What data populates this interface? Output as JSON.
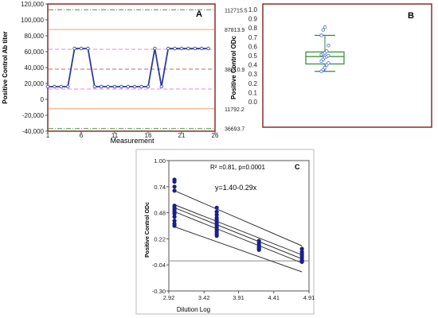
{
  "chart_data": [
    {
      "panel": "A",
      "type": "line",
      "xlabel": "Measurement",
      "ylabel": "Positive Control Ab titer",
      "xticks": [
        1,
        6,
        11,
        16,
        21,
        26
      ],
      "yticks": [
        "120,000",
        "100,000",
        "80,000",
        "60,000",
        "40,000",
        "20,000",
        "0",
        "-20,000",
        "-40,000"
      ],
      "xlim": [
        1,
        26
      ],
      "ylim": [
        -40000,
        120000
      ],
      "x": [
        1,
        2,
        3,
        4,
        5,
        6,
        7,
        8,
        9,
        10,
        11,
        12,
        13,
        14,
        15,
        16,
        17,
        18,
        19,
        20,
        21,
        22,
        23,
        24,
        25
      ],
      "values": [
        16000,
        16000,
        16000,
        16000,
        64000,
        64000,
        64000,
        16000,
        16000,
        16000,
        16000,
        16000,
        16000,
        16000,
        16000,
        16000,
        64000,
        16000,
        64000,
        64000,
        64000,
        64000,
        64000,
        64000,
        64000
      ],
      "reference_lines": [
        {
          "label": "112715.5",
          "value": 112715.5,
          "color": "#3a9b3a",
          "style": "dashdot"
        },
        {
          "label": "87813.9",
          "value": 87813.9,
          "color": "#f2a070",
          "style": "solid"
        },
        {
          "label": "",
          "value": 63000,
          "color": "#e28be0",
          "style": "dashed"
        },
        {
          "label": "38010.9",
          "value": 38010.9,
          "color": "#b07060",
          "style": "dashed"
        },
        {
          "label": "",
          "value": 13000,
          "color": "#e28be0",
          "style": "dashed"
        },
        {
          "label": "11792.2",
          "value": -11792.2,
          "color": "#f2a070",
          "style": "solid"
        },
        {
          "label": "36693.7",
          "value": -36693.7,
          "color": "#3a9b3a",
          "style": "dashdot"
        }
      ],
      "colors": {
        "line": "#2b3b9b",
        "marker_fill": "#ffffff",
        "frame": "#8b2b2b"
      }
    },
    {
      "panel": "B",
      "type": "box",
      "ylabel": "Positive Control ODc",
      "yticks": [
        "0.0",
        "0.1",
        "0.2",
        "0.3",
        "0.4",
        "0.5",
        "0.6",
        "0.7",
        "0.8",
        "0.9",
        "1.0"
      ],
      "ylim": [
        0,
        1.0
      ],
      "box": {
        "whisker_low": 0.33,
        "q1": 0.41,
        "median": 0.49,
        "q3": 0.54,
        "whisker_high": 0.72
      },
      "points": [
        0.33,
        0.35,
        0.37,
        0.4,
        0.42,
        0.44,
        0.46,
        0.48,
        0.49,
        0.5,
        0.51,
        0.52,
        0.53,
        0.55,
        0.61,
        0.72,
        0.78,
        0.81
      ],
      "colors": {
        "box": "#2e8b2e",
        "points": "#4a6fd8",
        "frame": "#8b2b2b"
      }
    },
    {
      "panel": "C",
      "type": "scatter",
      "xlabel": "Dilution Log",
      "ylabel": "Positive Control ODc",
      "annotation_stats": "R² =0.81, p=0.0001",
      "annotation_equation": "y=1.40-0.29x",
      "xticks": [
        "2.92",
        "3.42",
        "3.91",
        "4.41",
        "4.91"
      ],
      "yticks": [
        "1.00",
        "0.74",
        "0.48",
        "0.22",
        "-0.04",
        "-0.30"
      ],
      "xlim": [
        2.92,
        4.91
      ],
      "ylim": [
        -0.3,
        1.0
      ],
      "hline": 0.0,
      "points": [
        {
          "x": 3.0,
          "y": 0.81
        },
        {
          "x": 3.0,
          "y": 0.79
        },
        {
          "x": 3.0,
          "y": 0.74
        },
        {
          "x": 3.0,
          "y": 0.7
        },
        {
          "x": 3.0,
          "y": 0.55
        },
        {
          "x": 3.0,
          "y": 0.53
        },
        {
          "x": 3.0,
          "y": 0.51
        },
        {
          "x": 3.0,
          "y": 0.49
        },
        {
          "x": 3.0,
          "y": 0.47
        },
        {
          "x": 3.0,
          "y": 0.44
        },
        {
          "x": 3.0,
          "y": 0.4
        },
        {
          "x": 3.0,
          "y": 0.37
        },
        {
          "x": 3.0,
          "y": 0.35
        },
        {
          "x": 3.6,
          "y": 0.53
        },
        {
          "x": 3.6,
          "y": 0.49
        },
        {
          "x": 3.6,
          "y": 0.46
        },
        {
          "x": 3.6,
          "y": 0.43
        },
        {
          "x": 3.6,
          "y": 0.41
        },
        {
          "x": 3.6,
          "y": 0.39
        },
        {
          "x": 3.6,
          "y": 0.37
        },
        {
          "x": 3.6,
          "y": 0.35
        },
        {
          "x": 3.6,
          "y": 0.33
        },
        {
          "x": 3.6,
          "y": 0.31
        },
        {
          "x": 3.6,
          "y": 0.29
        },
        {
          "x": 3.6,
          "y": 0.27
        },
        {
          "x": 3.6,
          "y": 0.25
        },
        {
          "x": 4.2,
          "y": 0.2
        },
        {
          "x": 4.2,
          "y": 0.18
        },
        {
          "x": 4.2,
          "y": 0.16
        },
        {
          "x": 4.2,
          "y": 0.14
        },
        {
          "x": 4.2,
          "y": 0.13
        },
        {
          "x": 4.2,
          "y": 0.12
        },
        {
          "x": 4.2,
          "y": 0.11
        },
        {
          "x": 4.81,
          "y": 0.12
        },
        {
          "x": 4.81,
          "y": 0.09
        },
        {
          "x": 4.81,
          "y": 0.07
        },
        {
          "x": 4.81,
          "y": 0.05
        },
        {
          "x": 4.81,
          "y": 0.03
        },
        {
          "x": 4.81,
          "y": 0.01
        },
        {
          "x": 4.81,
          "y": -0.01
        },
        {
          "x": 4.81,
          "y": 0.0
        }
      ],
      "fit_lines": [
        {
          "x": [
            3.0,
            4.81
          ],
          "y": [
            0.7,
            0.15
          ]
        },
        {
          "x": [
            3.0,
            4.81
          ],
          "y": [
            0.56,
            0.06
          ]
        },
        {
          "x": [
            3.0,
            4.81
          ],
          "y": [
            0.53,
            0.02
          ]
        },
        {
          "x": [
            3.0,
            4.81
          ],
          "y": [
            0.49,
            -0.02
          ]
        },
        {
          "x": [
            3.0,
            4.81
          ],
          "y": [
            0.34,
            -0.11
          ]
        }
      ],
      "colors": {
        "points": "#1a1f8c",
        "lines": "#333333",
        "hline": "#888888",
        "frame": "#bbbbbb"
      }
    }
  ],
  "panel_labels": {
    "a": "A",
    "b": "B",
    "c": "C"
  }
}
